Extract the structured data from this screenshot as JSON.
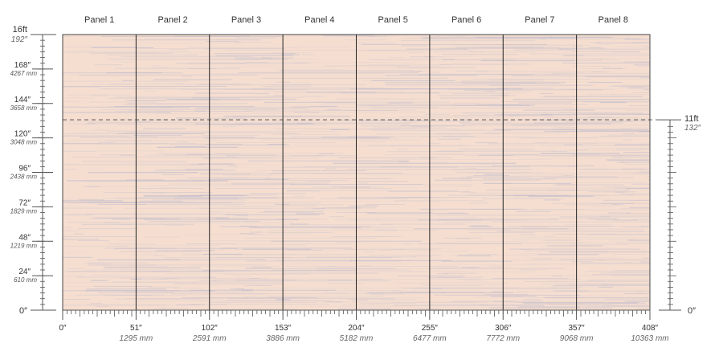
{
  "panels": [
    "Panel 1",
    "Panel 2",
    "Panel 3",
    "Panel 4",
    "Panel 5",
    "Panel 6",
    "Panel 7",
    "Panel 8"
  ],
  "left_axis": {
    "top_label": "16ft",
    "top_sub": "192″",
    "ticks": [
      {
        "main": "168″",
        "sub": "4267 mm",
        "value": 168
      },
      {
        "main": "144″",
        "sub": "3658 mm",
        "value": 144
      },
      {
        "main": "120″",
        "sub": "3048 mm",
        "value": 120
      },
      {
        "main": "96″",
        "sub": "2438 mm",
        "value": 96
      },
      {
        "main": "72″",
        "sub": "1829 mm",
        "value": 72
      },
      {
        "main": "48″",
        "sub": "1219 mm",
        "value": 48
      },
      {
        "main": "24″",
        "sub": "610 mm",
        "value": 24
      }
    ],
    "zero": "0″",
    "max_inches": 192
  },
  "right_axis": {
    "label": "11ft",
    "sub": "132″",
    "zero": "0″",
    "value_inches": 132
  },
  "bottom_axis": {
    "ticks": [
      {
        "main": "0″",
        "sub": "",
        "value": 0
      },
      {
        "main": "51″",
        "sub": "1295 mm",
        "value": 51
      },
      {
        "main": "102″",
        "sub": "2591 mm",
        "value": 102
      },
      {
        "main": "153″",
        "sub": "3886 mm",
        "value": 153
      },
      {
        "main": "204″",
        "sub": "5182 mm",
        "value": 204
      },
      {
        "main": "255″",
        "sub": "6477 mm",
        "value": 255
      },
      {
        "main": "306″",
        "sub": "7772 mm",
        "value": 306
      },
      {
        "main": "357″",
        "sub": "9068 mm",
        "value": 357
      },
      {
        "main": "408″",
        "sub": "10363 mm",
        "value": 408
      }
    ],
    "max_inches": 408
  },
  "colors": {
    "wall": "#f5ded0",
    "stroke": "#b9b8cc",
    "divider": "#222222",
    "axis": "#555555"
  }
}
